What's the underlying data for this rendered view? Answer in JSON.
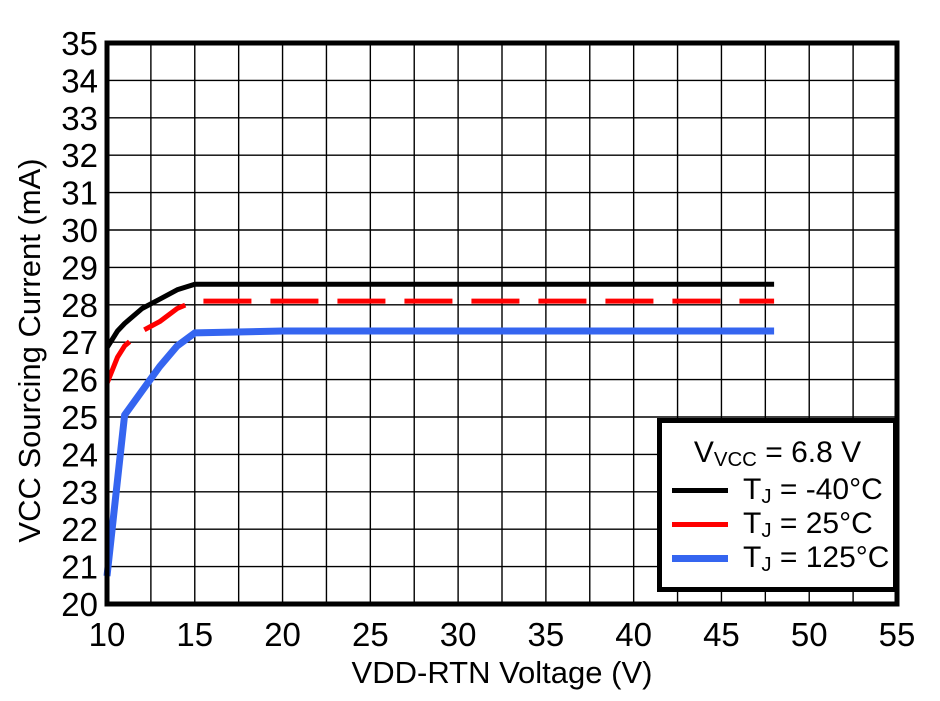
{
  "chart_data": {
    "type": "line",
    "title": "",
    "xlabel": "VDD-RTN Voltage (V)",
    "ylabel": "VCC Sourcing Current (mA)",
    "xlim": [
      10,
      55
    ],
    "ylim": [
      20,
      35
    ],
    "x_grid_step": 2.5,
    "y_grid_step": 1,
    "grid": true,
    "legend_position": "lower right",
    "legend_title": "V_VCC = 6.8 V",
    "series": [
      {
        "name": "TJ = -40degC",
        "color": "#000000",
        "style": "solid",
        "width": 5,
        "x": [
          10,
          10.6,
          11,
          12,
          13,
          14,
          15,
          48
        ],
        "y": [
          26.85,
          27.3,
          27.5,
          27.9,
          28.15,
          28.4,
          28.55,
          28.55
        ]
      },
      {
        "name": "TJ = 25degC",
        "color": "#ff0000",
        "style": "dashed",
        "width": 5,
        "x": [
          10,
          10.6,
          11,
          12,
          13,
          14,
          15,
          48
        ],
        "y": [
          25.9,
          26.6,
          26.9,
          27.3,
          27.55,
          27.9,
          28.1,
          28.1
        ]
      },
      {
        "name": "TJ = 125degC",
        "color": "#3565f0",
        "style": "solid",
        "width": 7,
        "x": [
          10,
          11,
          12,
          13,
          14,
          15,
          20,
          48
        ],
        "y": [
          20.75,
          25.05,
          25.7,
          26.35,
          26.9,
          27.25,
          27.3,
          27.3
        ]
      }
    ]
  },
  "axes": {
    "x_title": "VDD-RTN Voltage (V)",
    "y_title": "VCC Sourcing Current (mA)",
    "x_ticks": [
      "10",
      "15",
      "20",
      "25",
      "30",
      "35",
      "40",
      "45",
      "50",
      "55"
    ],
    "y_ticks": [
      "20",
      "21",
      "22",
      "23",
      "24",
      "25",
      "26",
      "27",
      "28",
      "29",
      "30",
      "31",
      "32",
      "33",
      "34",
      "35"
    ]
  },
  "legend": {
    "title": {
      "pre": "V",
      "sub": "VCC",
      "post": " = 6.8 V"
    },
    "entries": [
      {
        "pre": "T",
        "sub": "J",
        "post": " = -40°C",
        "color": "#000000",
        "line_height": 5
      },
      {
        "pre": "T",
        "sub": "J",
        "post": " = 25°C",
        "color": "#ff0000",
        "line_height": 5
      },
      {
        "pre": "T",
        "sub": "J",
        "post": " = 125°C",
        "color": "#3565f0",
        "line_height": 7
      }
    ]
  }
}
